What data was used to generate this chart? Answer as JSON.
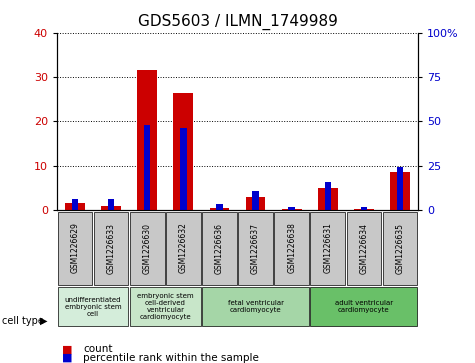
{
  "title": "GDS5603 / ILMN_1749989",
  "samples": [
    "GSM1226629",
    "GSM1226633",
    "GSM1226630",
    "GSM1226632",
    "GSM1226636",
    "GSM1226637",
    "GSM1226638",
    "GSM1226631",
    "GSM1226634",
    "GSM1226635"
  ],
  "counts": [
    1.5,
    1.0,
    31.5,
    26.5,
    0.5,
    3.0,
    0.3,
    5.0,
    0.3,
    8.5
  ],
  "percentiles": [
    6.0,
    6.5,
    48.0,
    46.0,
    3.5,
    11.0,
    1.5,
    16.0,
    1.5,
    24.0
  ],
  "count_color": "#cc0000",
  "percentile_color": "#0000cc",
  "ylim_left": [
    0,
    40
  ],
  "ylim_right": [
    0,
    100
  ],
  "yticks_left": [
    0,
    10,
    20,
    30,
    40
  ],
  "yticks_right": [
    0,
    25,
    50,
    75,
    100
  ],
  "yticklabels_right": [
    "0",
    "25",
    "50",
    "75",
    "100%"
  ],
  "cell_types": [
    {
      "label": "undifferentiated\nembryonic stem\ncell",
      "start": 0,
      "end": 2,
      "color": "#d4edda"
    },
    {
      "label": "embryonic stem\ncell-derived\nventricular\ncardiomyocyte",
      "start": 2,
      "end": 4,
      "color": "#c8e6c9"
    },
    {
      "label": "fetal ventricular\ncardiomyocyte",
      "start": 4,
      "end": 7,
      "color": "#a5d6a7"
    },
    {
      "label": "adult ventricular\ncardiomyocyte",
      "start": 7,
      "end": 10,
      "color": "#69c068"
    }
  ],
  "cell_type_label": "cell type",
  "legend_count_label": "count",
  "legend_percentile_label": "percentile rank within the sample",
  "bg_color": "#ffffff",
  "tick_bg_color": "#c8c8c8"
}
